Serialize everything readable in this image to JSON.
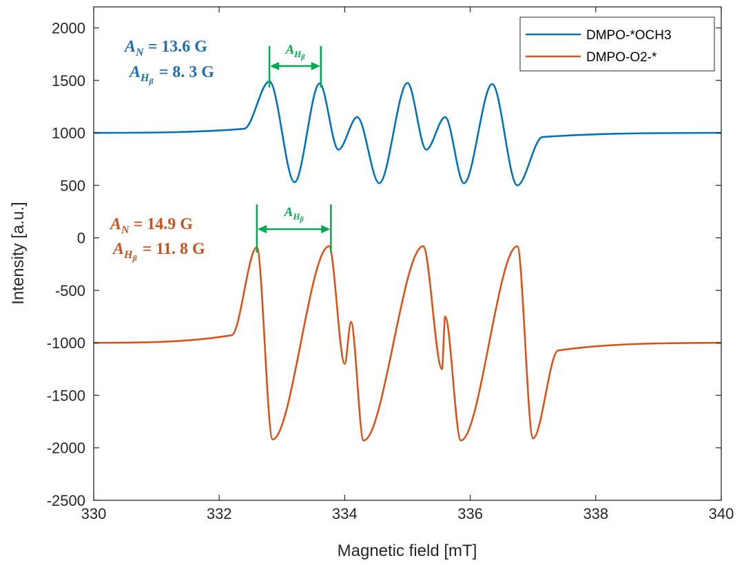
{
  "chart_data": {
    "type": "line",
    "xlabel": "Magnetic field [mT]",
    "ylabel": "Intensity [a.u.]",
    "xlim": [
      330,
      340
    ],
    "ylim": [
      -2500,
      2200
    ],
    "xticks": [
      330,
      332,
      334,
      336,
      338,
      340
    ],
    "yticks": [
      2000,
      1500,
      1000,
      500,
      0,
      -500,
      -1000,
      -1500,
      -2000,
      -2500
    ],
    "grid": false,
    "legend_position": "top-right",
    "series": [
      {
        "name": "DMPO-*OCH3",
        "color": "#0072BD",
        "baseline": 1000,
        "key_points": [
          [
            330,
            1000
          ],
          [
            332.8,
            1490
          ],
          [
            333.2,
            530
          ],
          [
            333.6,
            1470
          ],
          [
            333.9,
            840
          ],
          [
            334.2,
            1150
          ],
          [
            334.55,
            520
          ],
          [
            335,
            1475
          ],
          [
            335.3,
            840
          ],
          [
            335.6,
            1150
          ],
          [
            335.9,
            520
          ],
          [
            336.35,
            1465
          ],
          [
            336.75,
            500
          ],
          [
            340,
            1000
          ]
        ]
      },
      {
        "name": "DMPO-O2-*",
        "color": "#D95319",
        "baseline": -1000,
        "key_points": [
          [
            330,
            -1000
          ],
          [
            332.6,
            -90
          ],
          [
            332.85,
            -1920
          ],
          [
            333.75,
            -80
          ],
          [
            334,
            -1200
          ],
          [
            334.1,
            -800
          ],
          [
            334.3,
            -1930
          ],
          [
            335.25,
            -80
          ],
          [
            335.55,
            -1250
          ],
          [
            335.6,
            -750
          ],
          [
            335.85,
            -1930
          ],
          [
            336.75,
            -80
          ],
          [
            337,
            -1910
          ],
          [
            340,
            -1000
          ]
        ]
      }
    ],
    "annotations": {
      "blue": {
        "a_n_symbol": "A",
        "a_n_sub": "N",
        "a_n_value": "= 13.6 G",
        "a_h_symbol": "A",
        "a_h_sub": "H",
        "a_h_subsub": "β",
        "a_h_value": "= 8. 3 G",
        "bracket_from": 332.8,
        "bracket_to": 333.62,
        "color": "#1F6EB5"
      },
      "orange": {
        "a_n_symbol": "A",
        "a_n_sub": "N",
        "a_n_value": "= 14.9 G",
        "a_h_symbol": "A",
        "a_h_sub": "H",
        "a_h_subsub": "β",
        "a_h_value": "= 11. 8 G",
        "bracket_from": 332.6,
        "bracket_to": 333.78,
        "color": "#C9531E"
      },
      "bracket_label": {
        "symbol": "A",
        "sub": "H",
        "subsub": "β",
        "color": "#00A84F"
      }
    }
  }
}
